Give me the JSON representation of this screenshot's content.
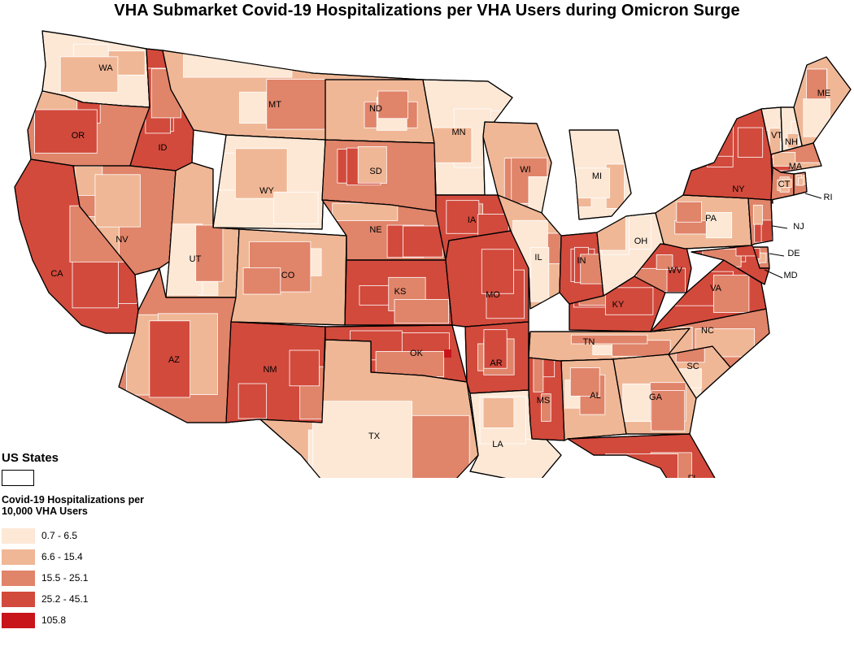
{
  "title": "VHA Submarket Covid-19 Hospitalizations per VHA Users during Omicron Surge",
  "legend": {
    "states_heading": "US States",
    "metric_title": "Covid-19 Hospitalizations per 10,000 VHA Users",
    "classes": [
      {
        "range": "0.7 - 6.5",
        "color": "#fde8d6"
      },
      {
        "range": "6.6 - 15.4",
        "color": "#f0b796"
      },
      {
        "range": "15.5 - 25.1",
        "color": "#e0846a"
      },
      {
        "range": "25.2 - 45.1",
        "color": "#d24a3c"
      },
      {
        "range": "105.8",
        "color": "#c8141b"
      }
    ]
  },
  "states": [
    {
      "abbr": "WA",
      "class": 0
    },
    {
      "abbr": "OR",
      "class": 2
    },
    {
      "abbr": "CA",
      "class": 3
    },
    {
      "abbr": "ID",
      "class": 3
    },
    {
      "abbr": "NV",
      "class": 2
    },
    {
      "abbr": "MT",
      "class": 1
    },
    {
      "abbr": "WY",
      "class": 0
    },
    {
      "abbr": "UT",
      "class": 1
    },
    {
      "abbr": "AZ",
      "class": 2
    },
    {
      "abbr": "CO",
      "class": 1
    },
    {
      "abbr": "NM",
      "class": 3
    },
    {
      "abbr": "ND",
      "class": 1
    },
    {
      "abbr": "SD",
      "class": 2
    },
    {
      "abbr": "NE",
      "class": 2
    },
    {
      "abbr": "KS",
      "class": 3
    },
    {
      "abbr": "OK",
      "class": 3
    },
    {
      "abbr": "TX",
      "class": 1
    },
    {
      "abbr": "MN",
      "class": 0
    },
    {
      "abbr": "IA",
      "class": 3
    },
    {
      "abbr": "MO",
      "class": 3
    },
    {
      "abbr": "AR",
      "class": 3
    },
    {
      "abbr": "LA",
      "class": 0
    },
    {
      "abbr": "WI",
      "class": 1
    },
    {
      "abbr": "IL",
      "class": 1
    },
    {
      "abbr": "MS",
      "class": 3
    },
    {
      "abbr": "MI",
      "class": 0
    },
    {
      "abbr": "IN",
      "class": 3
    },
    {
      "abbr": "KY",
      "class": 3
    },
    {
      "abbr": "TN",
      "class": 1
    },
    {
      "abbr": "AL",
      "class": 1
    },
    {
      "abbr": "OH",
      "class": 0
    },
    {
      "abbr": "GA",
      "class": 1
    },
    {
      "abbr": "FL",
      "class": 3
    },
    {
      "abbr": "SC",
      "class": 1
    },
    {
      "abbr": "NC",
      "class": 2
    },
    {
      "abbr": "VA",
      "class": 3
    },
    {
      "abbr": "WV",
      "class": 3
    },
    {
      "abbr": "PA",
      "class": 1
    },
    {
      "abbr": "NY",
      "class": 3
    },
    {
      "abbr": "VT",
      "class": 0
    },
    {
      "abbr": "NH",
      "class": 0
    },
    {
      "abbr": "ME",
      "class": 1
    },
    {
      "abbr": "MA",
      "class": 2
    },
    {
      "abbr": "CT",
      "class": 2
    },
    {
      "abbr": "RI",
      "class": 2
    },
    {
      "abbr": "NJ",
      "class": 2
    },
    {
      "abbr": "DE",
      "class": 2
    },
    {
      "abbr": "MD",
      "class": 3
    }
  ]
}
